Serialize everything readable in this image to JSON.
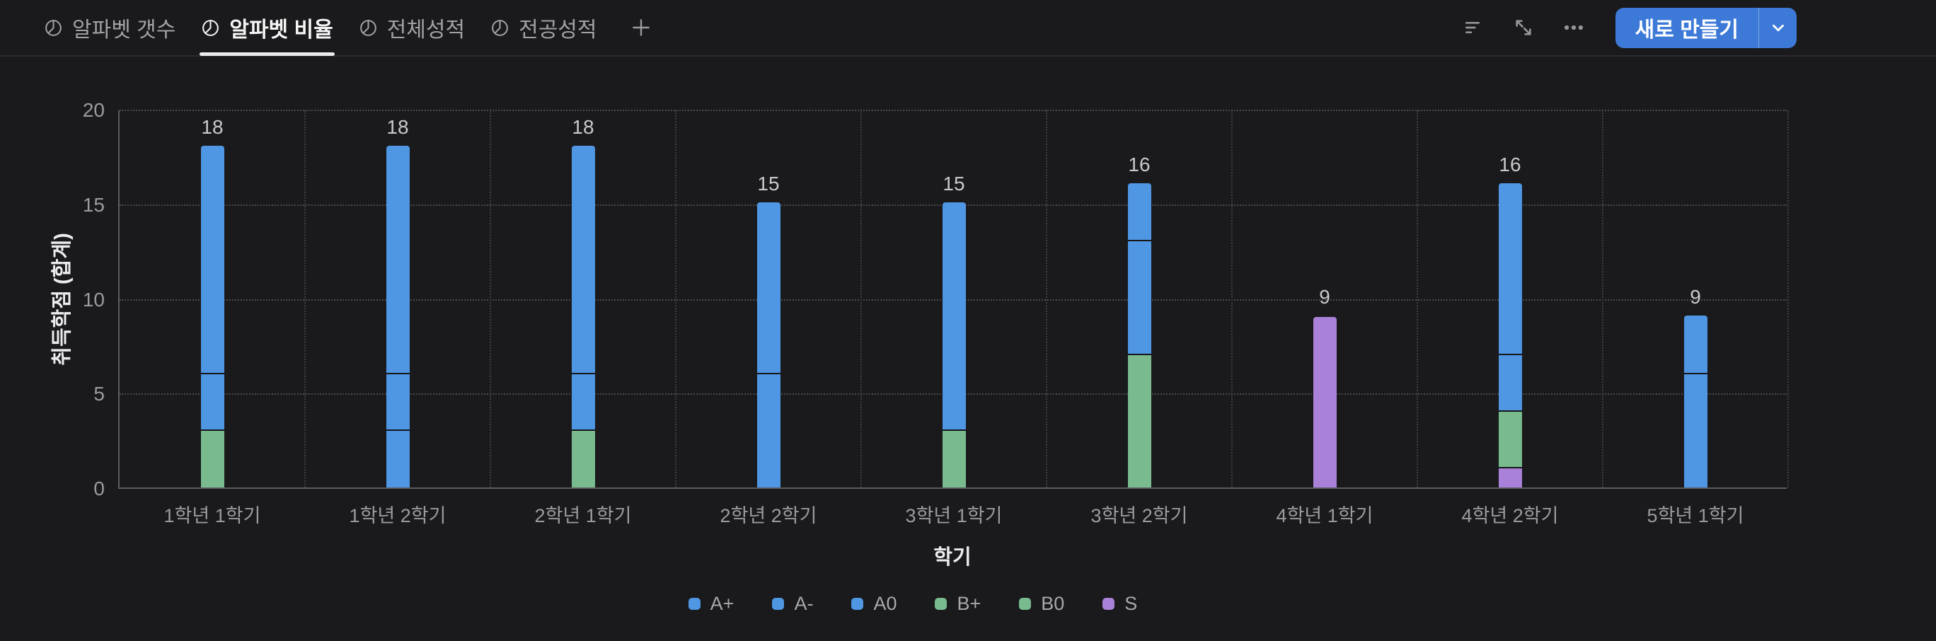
{
  "topbar": {
    "tabs": [
      {
        "label": "알파벳 갯수",
        "active": false
      },
      {
        "label": "알파벳 비율",
        "active": true
      },
      {
        "label": "전체성적",
        "active": false
      },
      {
        "label": "전공성적",
        "active": false
      }
    ],
    "add_tab_label": "+",
    "new_button": {
      "label": "새로 만들기"
    }
  },
  "icons": {
    "tab_icon": "pie-chart-icon",
    "toolbar_icons": [
      "filter-icon",
      "expand-icon",
      "more-icon"
    ],
    "new_button_icon": "chevron-down-icon"
  },
  "colors": {
    "background": "#1a1a1c",
    "accent_button": "#3d7ad8",
    "blue_series": "#4f96e3",
    "green_series": "#79bb8f",
    "purple_series": "#a981d8"
  },
  "chart_data": {
    "type": "bar",
    "stacked": true,
    "xlabel": "학기",
    "ylabel": "취득학점 (합계)",
    "ylim": [
      0,
      20
    ],
    "yticks": [
      0,
      5,
      10,
      15,
      20
    ],
    "grid": "dotted horizontal and vertical",
    "legend_position": "bottom",
    "categories": [
      "1학년 1학기",
      "1학년 2학기",
      "2학년 1학기",
      "2학년 2학기",
      "3학년 1학기",
      "3학년 2학기",
      "4학년 1학기",
      "4학년 2학기",
      "5학년 1학기"
    ],
    "totals": [
      18,
      18,
      18,
      15,
      15,
      16,
      9,
      16,
      9
    ],
    "stack_order_bottom_to_top": [
      "S",
      "B0",
      "B+",
      "A0",
      "A-",
      "A+"
    ],
    "series": [
      {
        "name": "A+",
        "color": "#4f96e3",
        "values": [
          12,
          12,
          12,
          9,
          12,
          3,
          0,
          9,
          3
        ]
      },
      {
        "name": "A-",
        "color": "#4f96e3",
        "values": [
          0,
          3,
          0,
          0,
          0,
          0,
          0,
          0,
          0
        ]
      },
      {
        "name": "A0",
        "color": "#4f96e3",
        "values": [
          3,
          3,
          3,
          6,
          0,
          6,
          0,
          3,
          6
        ]
      },
      {
        "name": "B+",
        "color": "#79bb8f",
        "values": [
          3,
          0,
          3,
          0,
          3,
          7,
          0,
          3,
          0
        ]
      },
      {
        "name": "B0",
        "color": "#79bb8f",
        "values": [
          0,
          0,
          0,
          0,
          0,
          0,
          0,
          0,
          0
        ]
      },
      {
        "name": "S",
        "color": "#a981d8",
        "values": [
          0,
          0,
          0,
          0,
          0,
          0,
          9,
          1,
          0
        ]
      }
    ],
    "legend": [
      "A+",
      "A-",
      "A0",
      "B+",
      "B0",
      "S"
    ]
  }
}
